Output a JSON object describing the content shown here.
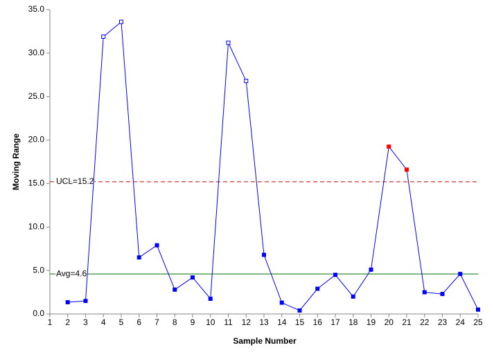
{
  "chart_data": {
    "type": "line",
    "xlabel": "Sample Number",
    "ylabel": "Moving Range",
    "x": [
      1,
      2,
      3,
      4,
      5,
      6,
      7,
      8,
      9,
      10,
      11,
      12,
      13,
      14,
      15,
      16,
      17,
      18,
      19,
      20,
      21,
      22,
      23,
      24,
      25
    ],
    "series": [
      {
        "name": "Moving Range",
        "color": "#0000ff",
        "values": [
          null,
          1.35,
          1.5,
          31.9,
          33.6,
          6.5,
          7.9,
          2.8,
          4.2,
          1.75,
          31.2,
          26.8,
          6.8,
          1.3,
          0.4,
          2.9,
          4.5,
          2.0,
          5.1,
          19.25,
          16.6,
          2.5,
          2.3,
          4.6,
          0.5
        ],
        "point_styles": [
          null,
          "filled",
          "filled",
          "open",
          "open",
          "filled",
          "filled",
          "filled",
          "filled",
          "filled",
          "open",
          "open",
          "filled",
          "filled",
          "filled",
          "filled",
          "filled",
          "filled",
          "filled",
          "alarm",
          "alarm",
          "filled",
          "filled",
          "filled",
          "filled"
        ],
        "alarm_color": "#ff0000"
      }
    ],
    "reference_lines": [
      {
        "label": "UCL=15.2",
        "value": 15.2,
        "color": "#c00000",
        "dashed": true
      },
      {
        "label": "Avg=4.6",
        "value": 4.6,
        "color": "#007000",
        "dashed": false
      }
    ],
    "xlim": [
      1,
      25
    ],
    "ylim": [
      0,
      35
    ],
    "xticks": [
      1,
      2,
      3,
      4,
      5,
      6,
      7,
      8,
      9,
      10,
      11,
      12,
      13,
      14,
      15,
      16,
      17,
      18,
      19,
      20,
      21,
      22,
      23,
      24,
      25
    ],
    "yticks": [
      {
        "value": 0,
        "label": "0.0"
      },
      {
        "value": 5,
        "label": "5.0"
      },
      {
        "value": 10,
        "label": "10.0"
      },
      {
        "value": 15,
        "label": "15.0"
      },
      {
        "value": 20,
        "label": "20.0"
      },
      {
        "value": 25,
        "label": "25.0"
      },
      {
        "value": 30,
        "label": "30.0"
      },
      {
        "value": 35,
        "label": "35.0"
      }
    ],
    "grid": false
  }
}
